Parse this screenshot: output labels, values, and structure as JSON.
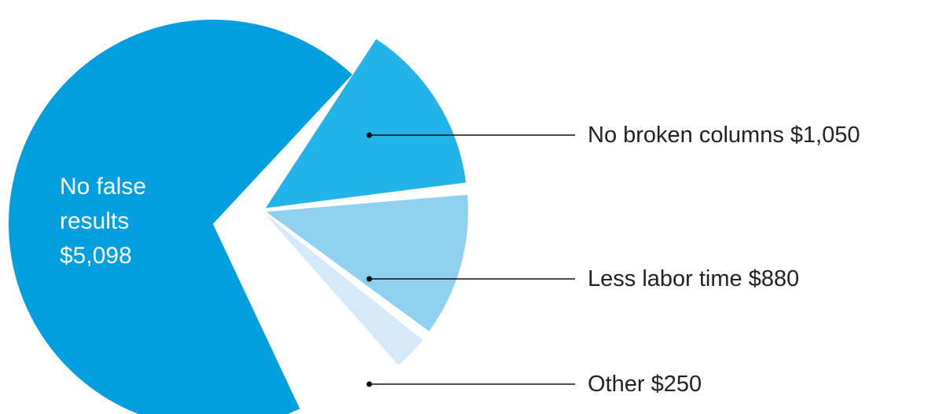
{
  "chart_data": {
    "type": "pie",
    "title": "",
    "total": 7278,
    "slices": [
      {
        "name": "No false results",
        "value": 5098,
        "color": "#019fe0",
        "label_lines": [
          "No false",
          "results",
          "$5,098"
        ]
      },
      {
        "name": "No broken columns",
        "value": 1050,
        "color": "#22b3e8",
        "callout": "No broken columns $1,050"
      },
      {
        "name": "Less labor time",
        "value": 880,
        "color": "#8fd0f0",
        "callout": "Less labor time $880"
      },
      {
        "name": "Other",
        "value": 250,
        "color": "#d4eafa",
        "callout": "Other $250"
      }
    ]
  }
}
